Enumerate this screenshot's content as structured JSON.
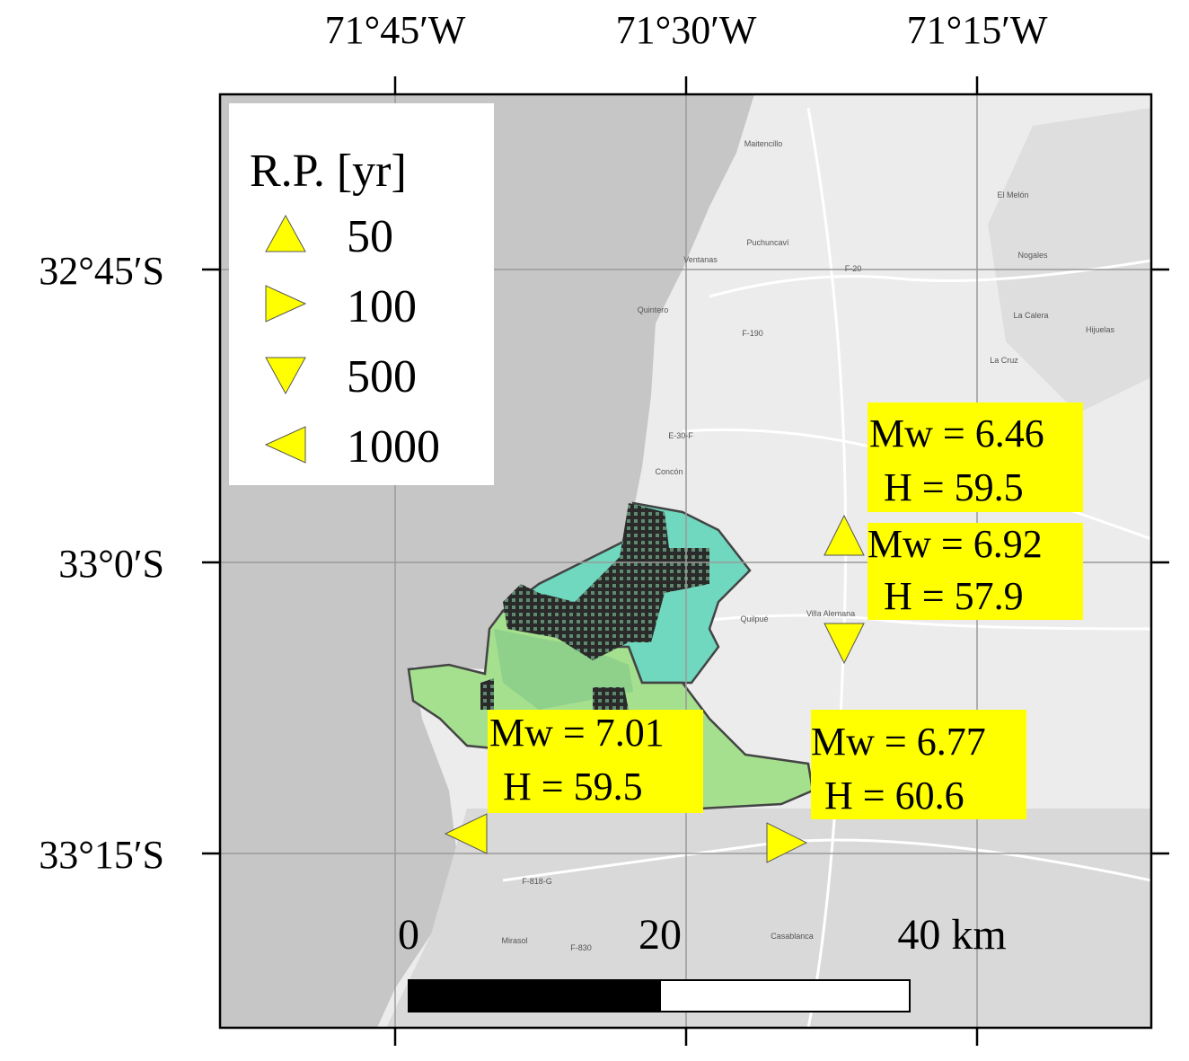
{
  "axes": {
    "lon_labels": [
      "71°45′W",
      "71°30′W",
      "71°15′W"
    ],
    "lat_labels": [
      "32°45′S",
      "33°0′S",
      "33°15′S"
    ]
  },
  "legend": {
    "title": "R.P. [yr]",
    "entries": [
      "50",
      "100",
      "500",
      "1000"
    ]
  },
  "annotations": [
    {
      "mw": "Mw = 6.46",
      "h": "H = 59.5"
    },
    {
      "mw": "Mw = 6.92",
      "h": "H = 57.9"
    },
    {
      "mw": "Mw = 7.01",
      "h": "H = 59.5"
    },
    {
      "mw": "Mw = 6.77",
      "h": "H = 60.6"
    }
  ],
  "scale_bar": {
    "labels": [
      "0",
      "20",
      "40 km"
    ]
  },
  "places": [
    "Maitencillo",
    "Puchuncaví",
    "Ventanas",
    "Quintero",
    "Nogales",
    "La Calera",
    "Hijuelas",
    "La Cruz",
    "El Melón",
    "Concón",
    "Quilpué",
    "Villa Alemana",
    "Casablanca",
    "Mirasol",
    "F-20",
    "F-190",
    "E-30-F",
    "F-818-G",
    "F-830"
  ]
}
